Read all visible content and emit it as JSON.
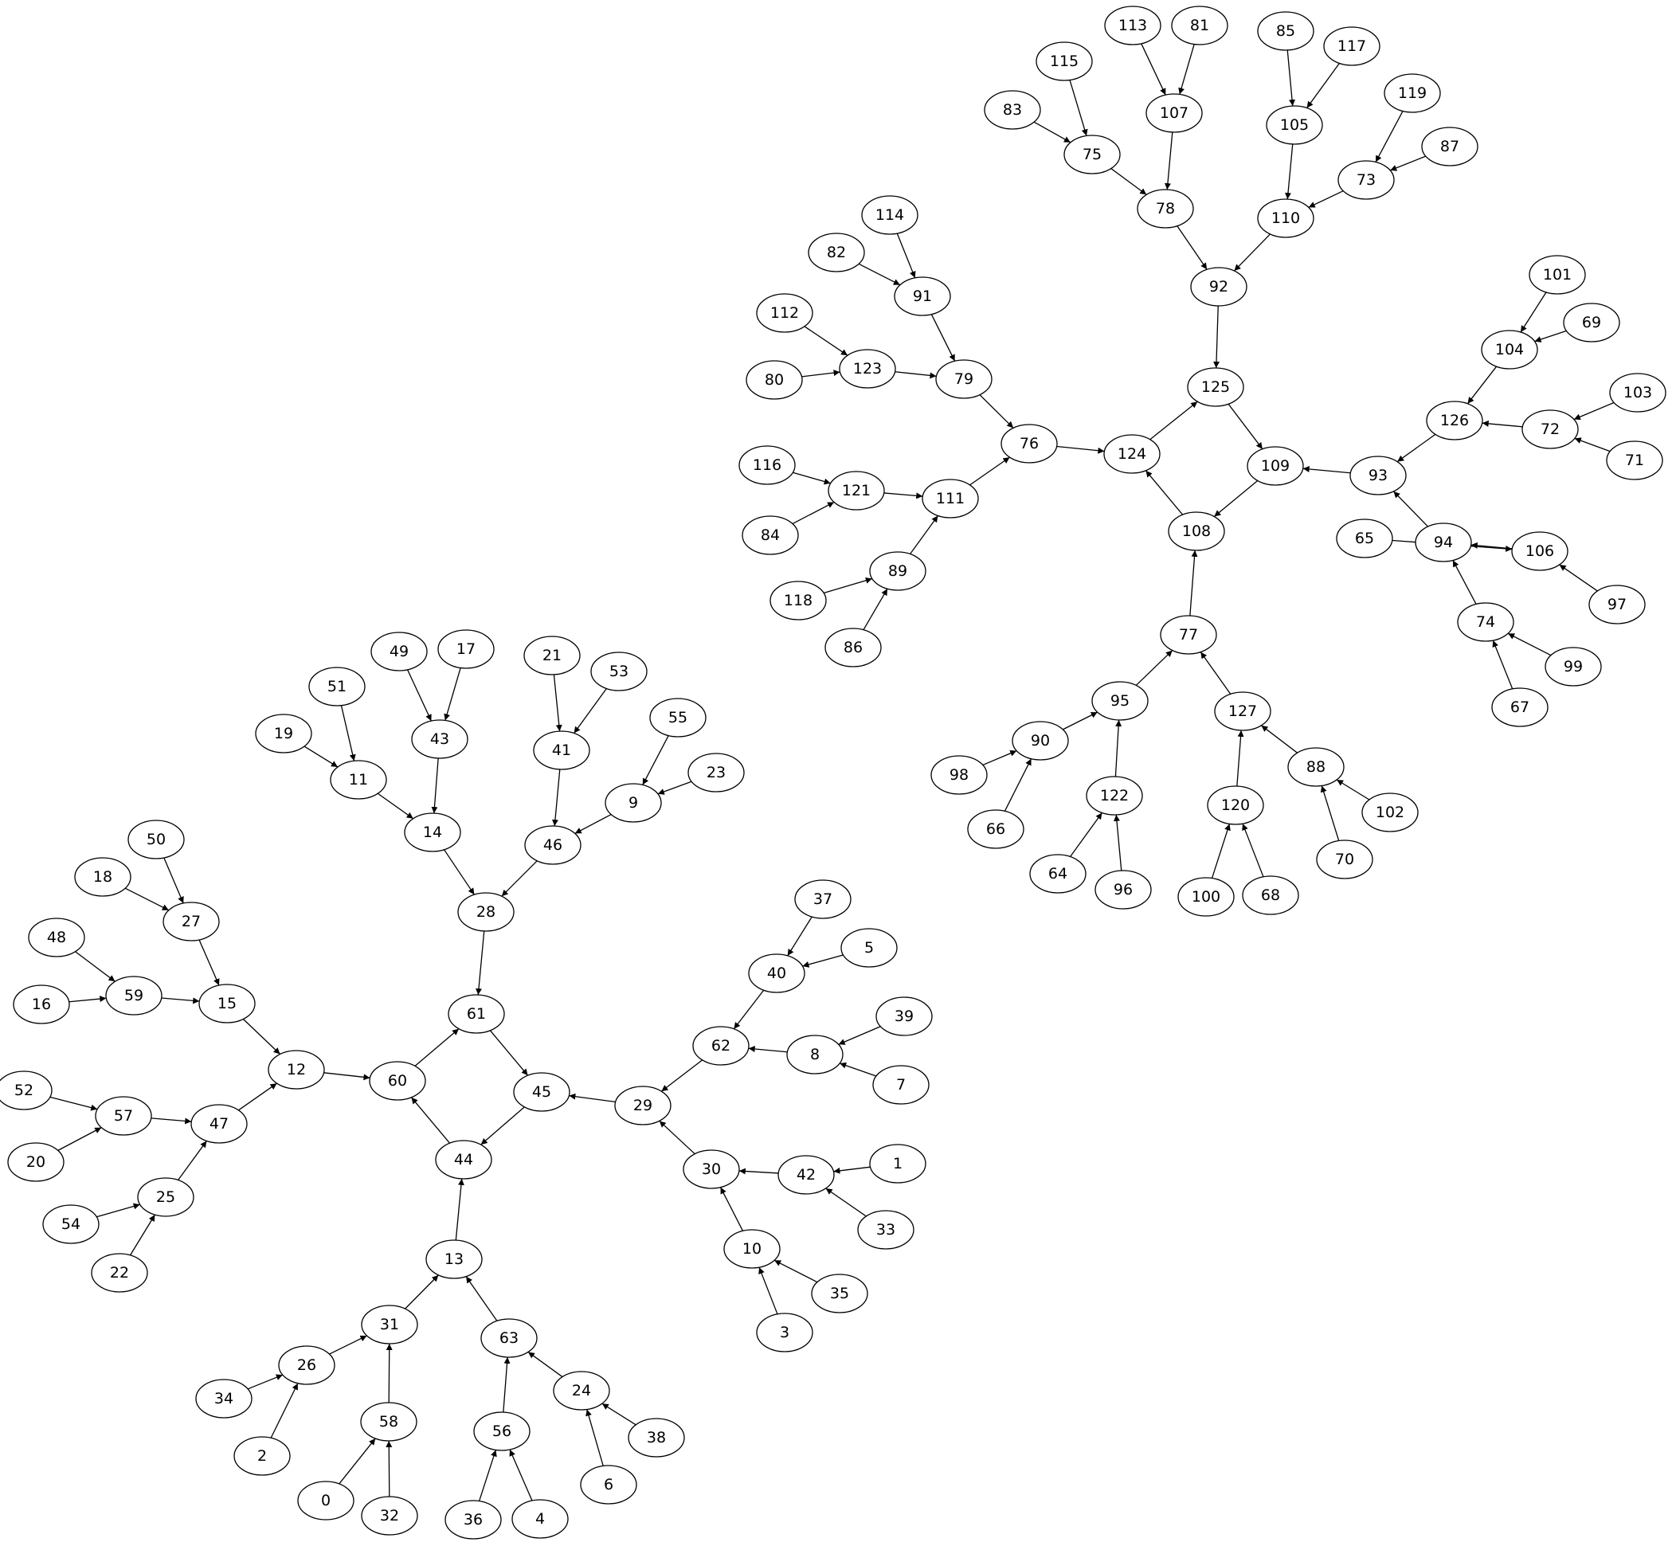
{
  "graph": {
    "edge_color": "#000000",
    "node_fill": "#ffffff",
    "node_stroke": "#000000",
    "nodes": [
      "0",
      "1",
      "2",
      "3",
      "4",
      "5",
      "6",
      "7",
      "8",
      "9",
      "10",
      "11",
      "12",
      "13",
      "14",
      "15",
      "16",
      "17",
      "18",
      "19",
      "20",
      "21",
      "22",
      "23",
      "24",
      "25",
      "26",
      "27",
      "28",
      "29",
      "30",
      "31",
      "32",
      "33",
      "34",
      "35",
      "36",
      "37",
      "38",
      "39",
      "40",
      "41",
      "42",
      "43",
      "44",
      "45",
      "46",
      "47",
      "48",
      "49",
      "50",
      "51",
      "52",
      "53",
      "54",
      "55",
      "56",
      "57",
      "58",
      "59",
      "60",
      "61",
      "62",
      "63",
      "64",
      "65",
      "66",
      "67",
      "68",
      "69",
      "70",
      "71",
      "72",
      "73",
      "74",
      "75",
      "76",
      "77",
      "78",
      "79",
      "80",
      "81",
      "82",
      "83",
      "84",
      "85",
      "86",
      "87",
      "88",
      "89",
      "90",
      "91",
      "92",
      "93",
      "94",
      "95",
      "96",
      "97",
      "98",
      "99",
      "100",
      "101",
      "102",
      "103",
      "104",
      "105",
      "106",
      "107",
      "108",
      "109",
      "110",
      "111",
      "112",
      "113",
      "114",
      "115",
      "116",
      "117",
      "118",
      "119",
      "120",
      "121",
      "122",
      "123",
      "124",
      "125",
      "126",
      "127"
    ],
    "edges": [
      [
        "50",
        "27"
      ],
      [
        "18",
        "27"
      ],
      [
        "27",
        "15"
      ],
      [
        "48",
        "59"
      ],
      [
        "16",
        "59"
      ],
      [
        "59",
        "15"
      ],
      [
        "15",
        "12"
      ],
      [
        "52",
        "57"
      ],
      [
        "20",
        "57"
      ],
      [
        "57",
        "47"
      ],
      [
        "54",
        "25"
      ],
      [
        "22",
        "25"
      ],
      [
        "25",
        "47"
      ],
      [
        "47",
        "12"
      ],
      [
        "12",
        "60"
      ],
      [
        "60",
        "61"
      ],
      [
        "61",
        "45"
      ],
      [
        "45",
        "44"
      ],
      [
        "44",
        "60"
      ],
      [
        "51",
        "11"
      ],
      [
        "19",
        "11"
      ],
      [
        "11",
        "14"
      ],
      [
        "49",
        "43"
      ],
      [
        "17",
        "43"
      ],
      [
        "43",
        "14"
      ],
      [
        "14",
        "28"
      ],
      [
        "21",
        "41"
      ],
      [
        "53",
        "41"
      ],
      [
        "41",
        "46"
      ],
      [
        "55",
        "9"
      ],
      [
        "23",
        "9"
      ],
      [
        "9",
        "46"
      ],
      [
        "46",
        "28"
      ],
      [
        "28",
        "61"
      ],
      [
        "37",
        "40"
      ],
      [
        "5",
        "40"
      ],
      [
        "40",
        "62"
      ],
      [
        "39",
        "8"
      ],
      [
        "7",
        "8"
      ],
      [
        "8",
        "62"
      ],
      [
        "62",
        "29"
      ],
      [
        "29",
        "45"
      ],
      [
        "1",
        "42"
      ],
      [
        "33",
        "42"
      ],
      [
        "42",
        "30"
      ],
      [
        "35",
        "10"
      ],
      [
        "3",
        "10"
      ],
      [
        "10",
        "30"
      ],
      [
        "30",
        "29"
      ],
      [
        "13",
        "44"
      ],
      [
        "31",
        "13"
      ],
      [
        "63",
        "13"
      ],
      [
        "26",
        "31"
      ],
      [
        "34",
        "26"
      ],
      [
        "2",
        "26"
      ],
      [
        "58",
        "31"
      ],
      [
        "0",
        "58"
      ],
      [
        "32",
        "58"
      ],
      [
        "56",
        "63"
      ],
      [
        "36",
        "56"
      ],
      [
        "4",
        "56"
      ],
      [
        "24",
        "63"
      ],
      [
        "38",
        "24"
      ],
      [
        "6",
        "24"
      ],
      [
        "113",
        "107"
      ],
      [
        "81",
        "107"
      ],
      [
        "107",
        "78"
      ],
      [
        "115",
        "75"
      ],
      [
        "83",
        "75"
      ],
      [
        "75",
        "78"
      ],
      [
        "78",
        "92"
      ],
      [
        "85",
        "105"
      ],
      [
        "117",
        "105"
      ],
      [
        "105",
        "110"
      ],
      [
        "119",
        "73"
      ],
      [
        "87",
        "73"
      ],
      [
        "73",
        "110"
      ],
      [
        "110",
        "92"
      ],
      [
        "92",
        "125"
      ],
      [
        "125",
        "109"
      ],
      [
        "109",
        "108"
      ],
      [
        "108",
        "124"
      ],
      [
        "124",
        "125"
      ],
      [
        "76",
        "124"
      ],
      [
        "114",
        "91"
      ],
      [
        "82",
        "91"
      ],
      [
        "91",
        "79"
      ],
      [
        "112",
        "123"
      ],
      [
        "80",
        "123"
      ],
      [
        "123",
        "79"
      ],
      [
        "79",
        "76"
      ],
      [
        "116",
        "121"
      ],
      [
        "84",
        "121"
      ],
      [
        "121",
        "111"
      ],
      [
        "111",
        "76"
      ],
      [
        "89",
        "111"
      ],
      [
        "118",
        "89"
      ],
      [
        "86",
        "89"
      ],
      [
        "101",
        "104"
      ],
      [
        "69",
        "104"
      ],
      [
        "104",
        "126"
      ],
      [
        "103",
        "72"
      ],
      [
        "71",
        "72"
      ],
      [
        "72",
        "126"
      ],
      [
        "126",
        "93"
      ],
      [
        "93",
        "109"
      ],
      [
        "94",
        "93"
      ],
      [
        "106",
        "94"
      ],
      [
        "65",
        "106"
      ],
      [
        "97",
        "106"
      ],
      [
        "74",
        "94"
      ],
      [
        "99",
        "74"
      ],
      [
        "67",
        "74"
      ],
      [
        "77",
        "108"
      ],
      [
        "95",
        "77"
      ],
      [
        "127",
        "77"
      ],
      [
        "90",
        "95"
      ],
      [
        "98",
        "90"
      ],
      [
        "66",
        "90"
      ],
      [
        "122",
        "95"
      ],
      [
        "64",
        "122"
      ],
      [
        "96",
        "122"
      ],
      [
        "120",
        "127"
      ],
      [
        "100",
        "120"
      ],
      [
        "68",
        "120"
      ],
      [
        "88",
        "127"
      ],
      [
        "102",
        "88"
      ],
      [
        "70",
        "88"
      ]
    ]
  }
}
